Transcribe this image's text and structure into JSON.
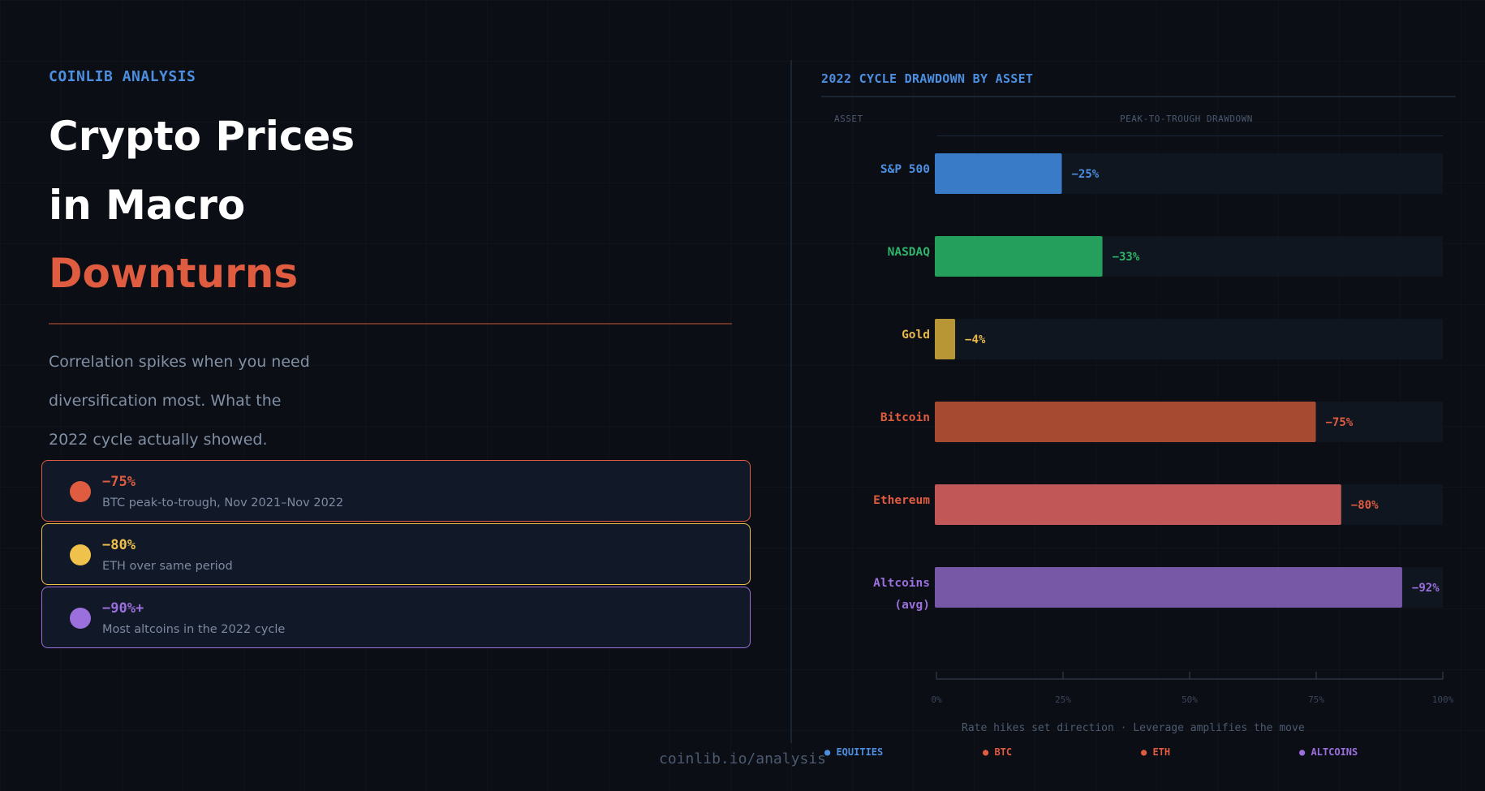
{
  "left": {
    "eyebrow": "COINLIB ANALYSIS",
    "title_line1": "Crypto Prices",
    "title_line2": "in Macro",
    "title_line3": "Downturns",
    "subtitle_lines": [
      "Correlation spikes when you need",
      "diversification most. What the",
      "2022 cycle actually showed."
    ],
    "stats": [
      {
        "value": "−75%",
        "desc": "BTC peak-to-trough, Nov 2021–Nov 2022",
        "color": "#e05c40"
      },
      {
        "value": "−80%",
        "desc": "ETH over same period",
        "color": "#f0c14b"
      },
      {
        "value": "−90%+",
        "desc": "Most altcoins in the 2022 cycle",
        "color": "#9b6fdc"
      }
    ],
    "footer": "coinlib.io/analysis"
  },
  "chart_data": {
    "type": "bar",
    "orientation": "horizontal",
    "title": "2022 CYCLE DRAWDOWN BY ASSET",
    "column_headers": [
      "ASSET",
      "PEAK-TO-TROUGH DRAWDOWN"
    ],
    "categories": [
      "S&P 500",
      "NASDAQ",
      "Gold",
      "Bitcoin",
      "Ethereum",
      "Altcoins (avg)"
    ],
    "values": [
      25,
      33,
      4,
      75,
      80,
      92
    ],
    "value_labels": [
      "−25%",
      "−33%",
      "−4%",
      "−75%",
      "−80%",
      "−92%"
    ],
    "bar_colors": [
      "#3a7bc8",
      "#25a05c",
      "#b89635",
      "#a64a32",
      "#c15757",
      "#7758a6"
    ],
    "label_colors": [
      "#4c8fe0",
      "#2fb36a",
      "#e8b84a",
      "#e05c40",
      "#e05c40",
      "#9b6fdc"
    ],
    "xlim": [
      0,
      100
    ],
    "x_ticks": [
      "0%",
      "25%",
      "50%",
      "75%",
      "100%"
    ],
    "caption": "Rate hikes set direction · Leverage amplifies the move",
    "legend": [
      {
        "label": "● EQUITIES",
        "color": "#4c8fe0"
      },
      {
        "label": "● BTC",
        "color": "#e05c40"
      },
      {
        "label": "● ETH",
        "color": "#e05c40"
      },
      {
        "label": "● ALTCOINS",
        "color": "#9b6fdc"
      }
    ]
  }
}
